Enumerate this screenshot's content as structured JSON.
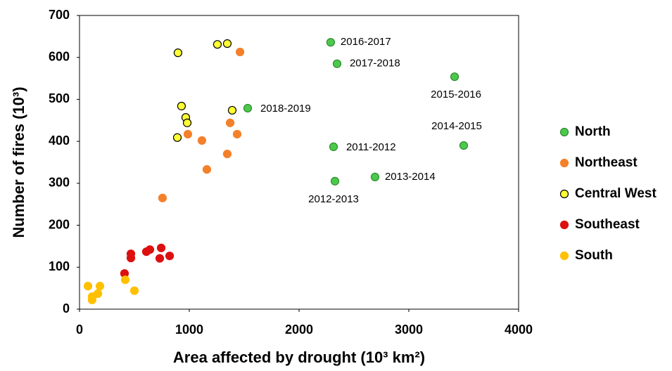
{
  "chart_data": {
    "type": "scatter",
    "xlabel": "Area affected by drought (10³ km²)",
    "ylabel": "Number of fires (10³)",
    "xlim": [
      0,
      4000
    ],
    "xticks": [
      0,
      1000,
      2000,
      3000,
      4000
    ],
    "ylim": [
      0,
      700
    ],
    "yticks": [
      0,
      100,
      200,
      300,
      400,
      500,
      600,
      700
    ],
    "grid": false,
    "legend": "right",
    "series": [
      {
        "name": "North",
        "color": "#4cc94c",
        "edgecolor": "#2e8b2e",
        "x": [
          2288,
          2346,
          3417,
          1532,
          3500,
          2314,
          2327,
          2692
        ],
        "values": [
          636,
          585,
          554,
          479,
          390,
          387,
          305,
          315
        ],
        "point_labels": [
          "2016-2017",
          "2017-2018",
          "2015-2016",
          "2018-2019",
          "2014-2015",
          "2011-2012",
          "2012-2013",
          "2013-2014"
        ]
      },
      {
        "name": "Northeast",
        "color": "#f5802a",
        "edgecolor": "#f5802a",
        "x": [
          1462,
          987,
          1115,
          1372,
          1436,
          1346,
          1160,
          756
        ],
        "values": [
          613,
          417,
          402,
          444,
          417,
          370,
          333,
          265
        ]
      },
      {
        "name": "Central West",
        "color": "#ffff33",
        "edgecolor": "#000000",
        "x": [
          897,
          1256,
          1346,
          929,
          968,
          981,
          1391,
          891
        ],
        "values": [
          611,
          631,
          633,
          484,
          457,
          444,
          474,
          409
        ]
      },
      {
        "name": "Southeast",
        "color": "#dd1010",
        "edgecolor": "#dd1010",
        "x": [
          410,
          468,
          468,
          609,
          641,
          744,
          731,
          821
        ],
        "values": [
          85,
          132,
          122,
          137,
          142,
          146,
          121,
          127
        ]
      },
      {
        "name": "South",
        "color": "#ffc000",
        "edgecolor": "#ffc000",
        "x": [
          77,
          186,
          167,
          115,
          115,
          417,
          500
        ],
        "values": [
          55,
          55,
          37,
          30,
          22,
          70,
          44
        ]
      }
    ]
  }
}
